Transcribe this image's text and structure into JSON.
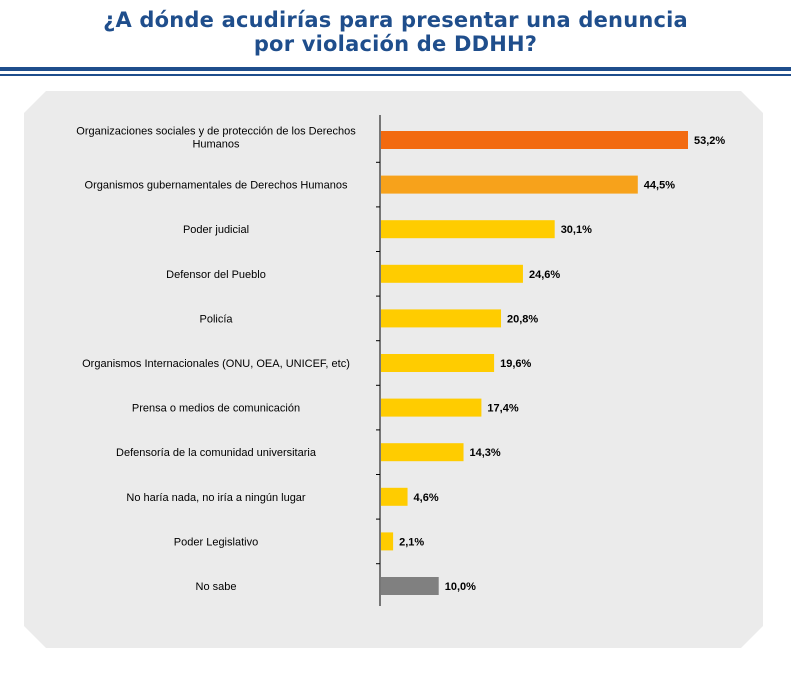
{
  "title": {
    "line1": "¿A dónde acudirías para presentar una denuncia",
    "line2": "por violación de DDHH?"
  },
  "colors": {
    "title": "#1f4e8c",
    "bar_top": "#f26a10",
    "bar_second": "#f7a21b",
    "bar_default": "#ffcc00",
    "bar_unknown": "#808080",
    "panel": "#ebebeb"
  },
  "chart_data": {
    "type": "bar",
    "orientation": "horizontal",
    "categories": [
      [
        "Organizaciones sociales y de protección de los Derechos",
        "Humanos"
      ],
      [
        "Organismos gubernamentales de Derechos Humanos"
      ],
      [
        "Poder judicial"
      ],
      [
        "Defensor del Pueblo"
      ],
      [
        "Policía"
      ],
      [
        "Organismos Internacionales (ONU, OEA, UNICEF, etc)"
      ],
      [
        "Prensa o medios de comunicación"
      ],
      [
        "Defensoría de la comunidad universitaria"
      ],
      [
        "No haría nada, no iría a ningún lugar"
      ],
      [
        "Poder Legislativo"
      ],
      [
        "No sabe"
      ]
    ],
    "values": [
      53.2,
      44.5,
      30.1,
      24.6,
      20.8,
      19.6,
      17.4,
      14.3,
      4.6,
      2.1,
      10.0
    ],
    "value_labels": [
      "53,2%",
      "44,5%",
      "30,1%",
      "24,6%",
      "20,8%",
      "19,6%",
      "17,4%",
      "14,3%",
      "4,6%",
      "2,1%",
      "10,0%"
    ],
    "bar_colors": [
      "#f26a10",
      "#f7a21b",
      "#ffcc00",
      "#ffcc00",
      "#ffcc00",
      "#ffcc00",
      "#ffcc00",
      "#ffcc00",
      "#ffcc00",
      "#ffcc00",
      "#808080"
    ],
    "xlim": [
      0,
      60
    ],
    "grid": false,
    "legend": "none"
  }
}
